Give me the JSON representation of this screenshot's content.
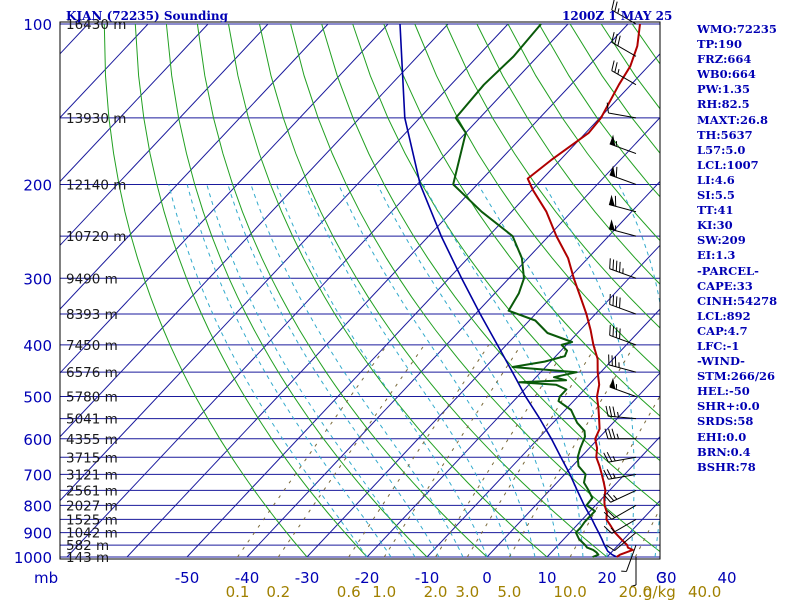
{
  "header": {
    "station": "KJAN (72235) Sounding",
    "time": "1200Z  1 MAY 25"
  },
  "indices": [
    "WMO:72235",
    "TP:190",
    "FRZ:664",
    "WB0:664",
    "PW:1.35",
    "RH:82.5",
    "MAXT:26.8",
    "TH:5637",
    "L57:5.0",
    "LCL:1007",
    "LI:4.6",
    "SI:5.5",
    "TT:41",
    "KI:30",
    "SW:209",
    "EI:1.3",
    "-PARCEL-",
    "CAPE:33",
    "CINH:54278",
    "LCL:892",
    "CAP:4.7",
    "LFC:-1",
    "-WIND-",
    "STM:266/26",
    "HEL:-50",
    "SHR+:0.0",
    "SRDS:58",
    "EHI:0.0",
    "BRN:0.4",
    "BSHR:78"
  ],
  "colors": {
    "text": "#0000b4",
    "isotherm": "#1a1a9c",
    "dry_adiabat": "#22a022",
    "moist_adiabat": "#33aacc",
    "mixing": "#7a6a3a",
    "temperature": "#b00000",
    "dewpoint": "#0a5a0a",
    "parcel": "#0000a0",
    "mixing_label": "#a08000"
  },
  "chart_data": {
    "type": "skew-t",
    "pressure_labels": [
      {
        "p": 100,
        "label": "100"
      },
      {
        "p": 200,
        "label": "200"
      },
      {
        "p": 300,
        "label": "300"
      },
      {
        "p": 400,
        "label": "400"
      },
      {
        "p": 500,
        "label": "500"
      },
      {
        "p": 600,
        "label": "600"
      },
      {
        "p": 700,
        "label": "700"
      },
      {
        "p": 800,
        "label": "800"
      },
      {
        "p": 900,
        "label": "900"
      },
      {
        "p": 1000,
        "label": "1000"
      }
    ],
    "altitude_labels": [
      {
        "p": 100,
        "label": "16430 m"
      },
      {
        "p": 150,
        "label": "13930 m"
      },
      {
        "p": 200,
        "label": "12140 m"
      },
      {
        "p": 250,
        "label": "10720 m"
      },
      {
        "p": 300,
        "label": "9490 m"
      },
      {
        "p": 350,
        "label": "8393 m"
      },
      {
        "p": 400,
        "label": "7450 m"
      },
      {
        "p": 450,
        "label": "6576 m"
      },
      {
        "p": 500,
        "label": "5780 m"
      },
      {
        "p": 550,
        "label": "5041 m"
      },
      {
        "p": 600,
        "label": "4355 m"
      },
      {
        "p": 650,
        "label": "3715 m"
      },
      {
        "p": 700,
        "label": "3121 m"
      },
      {
        "p": 750,
        "label": "2561 m"
      },
      {
        "p": 800,
        "label": "2027 m"
      },
      {
        "p": 850,
        "label": "1525 m"
      },
      {
        "p": 900,
        "label": "1042 m"
      },
      {
        "p": 950,
        "label": "582 m"
      },
      {
        "p": 1000,
        "label": "143 m"
      }
    ],
    "x_axis": {
      "unit_label": "mb",
      "ticks": [
        -50,
        -40,
        -30,
        -20,
        -10,
        0,
        10,
        20,
        30,
        40
      ],
      "end_label": "C"
    },
    "mixing_ratio_axis": {
      "ticks": [
        {
          "label": "0.1",
          "value": 0.1
        },
        {
          "label": "0.2",
          "value": 0.2
        },
        {
          "label": "0.6",
          "value": 0.6
        },
        {
          "label": "1.0",
          "value": 1.0
        },
        {
          "label": "2.0",
          "value": 2.0
        },
        {
          "label": "3.0",
          "value": 3.0
        },
        {
          "label": "5.0",
          "value": 5.0
        },
        {
          "label": "10.0",
          "value": 10.0
        },
        {
          "label": "20.0",
          "value": 20.0
        },
        {
          "label": "40.0",
          "value": 40.0
        }
      ],
      "unit_label": "g/kg"
    },
    "temperature": {
      "name": "Temperature",
      "points": [
        [
          1000,
          21.6
        ],
        [
          990,
          21.8
        ],
        [
          980,
          22.5
        ],
        [
          970,
          23.2
        ],
        [
          960,
          22.0
        ],
        [
          950,
          21.5
        ],
        [
          925,
          19.5
        ],
        [
          900,
          17.5
        ],
        [
          875,
          15.8
        ],
        [
          850,
          14.0
        ],
        [
          825,
          13.0
        ],
        [
          800,
          11.5
        ],
        [
          775,
          10.3
        ],
        [
          750,
          9.3
        ],
        [
          725,
          7.8
        ],
        [
          700,
          6.2
        ],
        [
          675,
          4.5
        ],
        [
          650,
          2.6
        ],
        [
          625,
          1.3
        ],
        [
          600,
          -0.5
        ],
        [
          575,
          -1.3
        ],
        [
          550,
          -3.0
        ],
        [
          525,
          -4.8
        ],
        [
          500,
          -6.8
        ],
        [
          475,
          -8.3
        ],
        [
          450,
          -10.5
        ],
        [
          425,
          -12.6
        ],
        [
          400,
          -15.5
        ],
        [
          375,
          -18.3
        ],
        [
          350,
          -21.5
        ],
        [
          325,
          -25.2
        ],
        [
          300,
          -29.2
        ],
        [
          275,
          -33.3
        ],
        [
          250,
          -38.7
        ],
        [
          225,
          -44.2
        ],
        [
          205,
          -49.8
        ],
        [
          195,
          -52.5
        ],
        [
          180,
          -51.5
        ],
        [
          160,
          -49.5
        ],
        [
          150,
          -49.8
        ],
        [
          130,
          -52.0
        ],
        [
          120,
          -53.0
        ],
        [
          110,
          -55.0
        ],
        [
          100,
          -58.0
        ]
      ]
    },
    "dewpoint": {
      "name": "Dewpoint",
      "points": [
        [
          1000,
          17.6
        ],
        [
          990,
          18.2
        ],
        [
          980,
          17.5
        ],
        [
          970,
          16.6
        ],
        [
          960,
          15.2
        ],
        [
          950,
          14.5
        ],
        [
          925,
          12.5
        ],
        [
          900,
          11.0
        ],
        [
          880,
          11.0
        ],
        [
          860,
          10.8
        ],
        [
          840,
          10.8
        ],
        [
          820,
          10.8
        ],
        [
          800,
          8.5
        ],
        [
          775,
          8.3
        ],
        [
          750,
          6.5
        ],
        [
          725,
          4.5
        ],
        [
          700,
          3.5
        ],
        [
          675,
          1.0
        ],
        [
          650,
          -0.5
        ],
        [
          625,
          -1.5
        ],
        [
          610,
          -2.0
        ],
        [
          595,
          -2.5
        ],
        [
          580,
          -3.5
        ],
        [
          560,
          -6.0
        ],
        [
          545,
          -7.5
        ],
        [
          530,
          -9.0
        ],
        [
          510,
          -12.5
        ],
        [
          500,
          -13.0
        ],
        [
          485,
          -13.0
        ],
        [
          475,
          -15.5
        ],
        [
          470,
          -22.0
        ],
        [
          466,
          -14.5
        ],
        [
          460,
          -17.0
        ],
        [
          450,
          -14.0
        ],
        [
          440,
          -25.5
        ],
        [
          430,
          -21.0
        ],
        [
          420,
          -18.5
        ],
        [
          410,
          -19.0
        ],
        [
          400,
          -20.8
        ],
        [
          395,
          -19.5
        ],
        [
          380,
          -25.0
        ],
        [
          360,
          -29.0
        ],
        [
          345,
          -35.0
        ],
        [
          320,
          -36.0
        ],
        [
          300,
          -37.5
        ],
        [
          275,
          -41.0
        ],
        [
          250,
          -46.0
        ],
        [
          225,
          -55.0
        ],
        [
          200,
          -64.0
        ],
        [
          160,
          -70.0
        ],
        [
          150,
          -74.0
        ],
        [
          130,
          -74.5
        ],
        [
          115,
          -74.0
        ],
        [
          100,
          -74.5
        ]
      ]
    },
    "parcel": {
      "name": "Parcel",
      "points": [
        [
          1000,
          21.6
        ],
        [
          990,
          20.5
        ],
        [
          975,
          19.2
        ],
        [
          950,
          17.7
        ],
        [
          925,
          16.3
        ],
        [
          900,
          14.8
        ],
        [
          875,
          13.2
        ],
        [
          850,
          11.6
        ],
        [
          800,
          8.1
        ],
        [
          750,
          4.6
        ],
        [
          700,
          0.9
        ],
        [
          650,
          -3.3
        ],
        [
          600,
          -7.8
        ],
        [
          550,
          -12.9
        ],
        [
          500,
          -18.7
        ],
        [
          450,
          -24.7
        ],
        [
          400,
          -31.5
        ],
        [
          350,
          -39.2
        ],
        [
          300,
          -47.9
        ],
        [
          250,
          -57.9
        ],
        [
          200,
          -69.5
        ],
        [
          150,
          -82.5
        ],
        [
          100,
          -98.0
        ]
      ]
    },
    "wind_barbs": [
      {
        "p": 100,
        "dir": 300,
        "kt": 25
      },
      {
        "p": 115,
        "dir": 300,
        "kt": 30
      },
      {
        "p": 130,
        "dir": 300,
        "kt": 25
      },
      {
        "p": 150,
        "dir": 280,
        "kt": 10
      },
      {
        "p": 175,
        "dir": 290,
        "kt": 55
      },
      {
        "p": 200,
        "dir": 290,
        "kt": 60
      },
      {
        "p": 225,
        "dir": 285,
        "kt": 60
      },
      {
        "p": 250,
        "dir": 285,
        "kt": 55
      },
      {
        "p": 300,
        "dir": 290,
        "kt": 45
      },
      {
        "p": 350,
        "dir": 290,
        "kt": 40
      },
      {
        "p": 400,
        "dir": 290,
        "kt": 40
      },
      {
        "p": 450,
        "dir": 285,
        "kt": 35
      },
      {
        "p": 500,
        "dir": 290,
        "kt": 55
      },
      {
        "p": 550,
        "dir": 275,
        "kt": 35
      },
      {
        "p": 600,
        "dir": 270,
        "kt": 35
      },
      {
        "p": 650,
        "dir": 260,
        "kt": 25
      },
      {
        "p": 700,
        "dir": 260,
        "kt": 25
      },
      {
        "p": 750,
        "dir": 245,
        "kt": 25
      },
      {
        "p": 800,
        "dir": 240,
        "kt": 20
      },
      {
        "p": 850,
        "dir": 240,
        "kt": 15
      },
      {
        "p": 900,
        "dir": 230,
        "kt": 10
      },
      {
        "p": 950,
        "dir": 200,
        "kt": 5
      },
      {
        "p": 1000,
        "dir": 180,
        "kt": 5
      }
    ]
  }
}
